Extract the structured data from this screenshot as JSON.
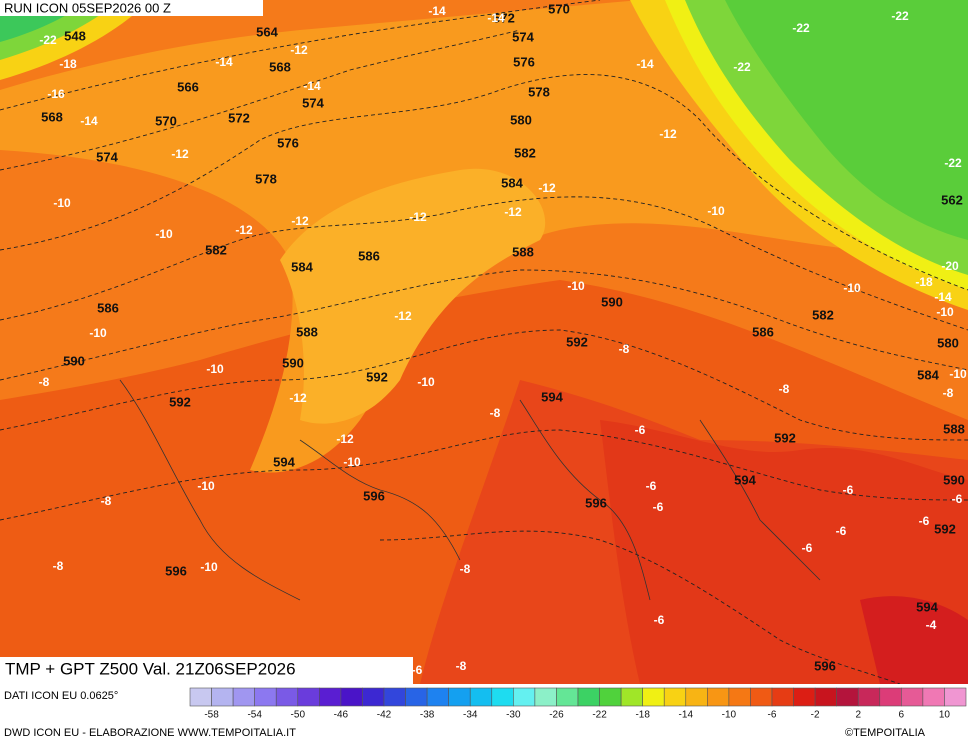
{
  "header": {
    "run": "RUN ICON 05SEP2026 00 Z",
    "title": "TMP + GPT Z500 Val. 21Z06SEP2026"
  },
  "footer": {
    "source": "DATI ICON EU 0.0625°",
    "credit": "DWD ICON EU - ELABORAZIONE WWW.TEMPOITALIA.IT",
    "brand": "©TEMPOITALIA"
  },
  "colorbar": {
    "colors": [
      "#c8c8f0",
      "#b4b4f0",
      "#a096f0",
      "#8c78f0",
      "#7a5ae6",
      "#6a3cdc",
      "#5a1ed2",
      "#4a14c8",
      "#3c28d2",
      "#3246dc",
      "#2864e6",
      "#1e82f0",
      "#14a0f0",
      "#14bef0",
      "#1edcf0",
      "#64f0f0",
      "#8cf0c8",
      "#64e696",
      "#3cd264",
      "#50d23c",
      "#a0e628",
      "#f0f014",
      "#f8d214",
      "#f8b414",
      "#f89614",
      "#f57814",
      "#f05a14",
      "#e63c14",
      "#dc1e14",
      "#c8141e",
      "#b4143c",
      "#c8285a",
      "#dc3c78",
      "#e65a96",
      "#f078b4",
      "#f096d2"
    ],
    "labels": [
      -58,
      -54,
      -50,
      -46,
      -42,
      -38,
      -34,
      -30,
      -26,
      -22,
      -18,
      -14,
      -10,
      -6,
      -2,
      2,
      6,
      10
    ]
  },
  "map": {
    "geopotential_labels": [
      548,
      564,
      572,
      570,
      574,
      568,
      576,
      566,
      574,
      578,
      568,
      570,
      572,
      580,
      576,
      574,
      582,
      578,
      584,
      562,
      582,
      584,
      586,
      588,
      590,
      586,
      588,
      582,
      586,
      592,
      590,
      590,
      580,
      592,
      584,
      592,
      594,
      588,
      592,
      594,
      594,
      590,
      596,
      596,
      592,
      596,
      594,
      596
    ],
    "temperature_labels": [
      -14,
      -14,
      -22,
      -22,
      -22,
      -12,
      -14,
      -18,
      -14,
      -22,
      -14,
      -16,
      -14,
      -12,
      -12,
      -22,
      -12,
      -10,
      -12,
      -10,
      -12,
      -12,
      -12,
      -10,
      -20,
      -18,
      -14,
      -10,
      -10,
      -10,
      -12,
      -10,
      -8,
      -10,
      -10,
      -8,
      -10,
      -8,
      -8,
      -12,
      -8,
      -6,
      -12,
      -10,
      -6,
      -10,
      -6,
      -8,
      -6,
      -6,
      -6,
      -6,
      -6,
      -8,
      -10,
      -8,
      -4,
      -6,
      -8,
      -6
    ]
  }
}
